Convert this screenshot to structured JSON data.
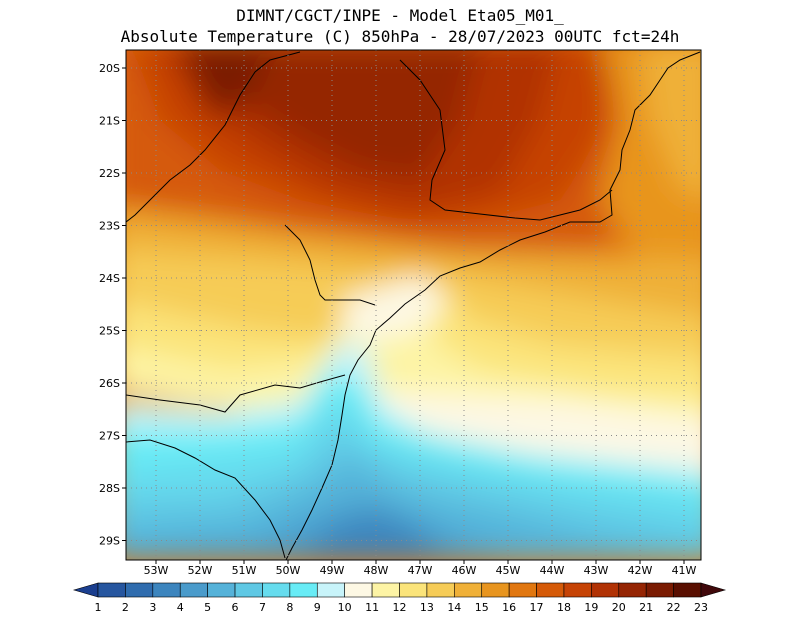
{
  "header": {
    "line1": "DIMNT/CGCT/INPE -  Model Eta05_M01_",
    "line2": "Absolute Temperature (C) 850hPa -  28/07/2023 00UTC fct=24h"
  },
  "map": {
    "variable": "Absolute Temperature",
    "units": "C",
    "level": "850hPa",
    "lat_labels": [
      "20S",
      "21S",
      "22S",
      "23S",
      "24S",
      "25S",
      "26S",
      "27S",
      "28S",
      "29S"
    ],
    "lon_labels": [
      "53W",
      "52W",
      "51W",
      "50W",
      "49W",
      "48W",
      "47W",
      "46W",
      "45W",
      "44W",
      "43W",
      "42W",
      "41W"
    ]
  },
  "colorbar": {
    "labels": [
      "1",
      "2",
      "3",
      "4",
      "5",
      "6",
      "7",
      "8",
      "9",
      "10",
      "11",
      "12",
      "13",
      "14",
      "15",
      "16",
      "17",
      "18",
      "19",
      "20",
      "21",
      "22",
      "23"
    ],
    "colors": [
      "#1b3f8f",
      "#26569f",
      "#2f6cae",
      "#3c85be",
      "#4a9bcb",
      "#55b2d9",
      "#5fc8e4",
      "#66dcee",
      "#68ecf6",
      "#c8f4fa",
      "#fdf8e4",
      "#fdf4a5",
      "#fbe47a",
      "#f6cc57",
      "#efb037",
      "#e8951f",
      "#e17710",
      "#d55a08",
      "#c64305",
      "#b13204",
      "#952503",
      "#7a1b02",
      "#5a0f01",
      "#40080a"
    ]
  }
}
